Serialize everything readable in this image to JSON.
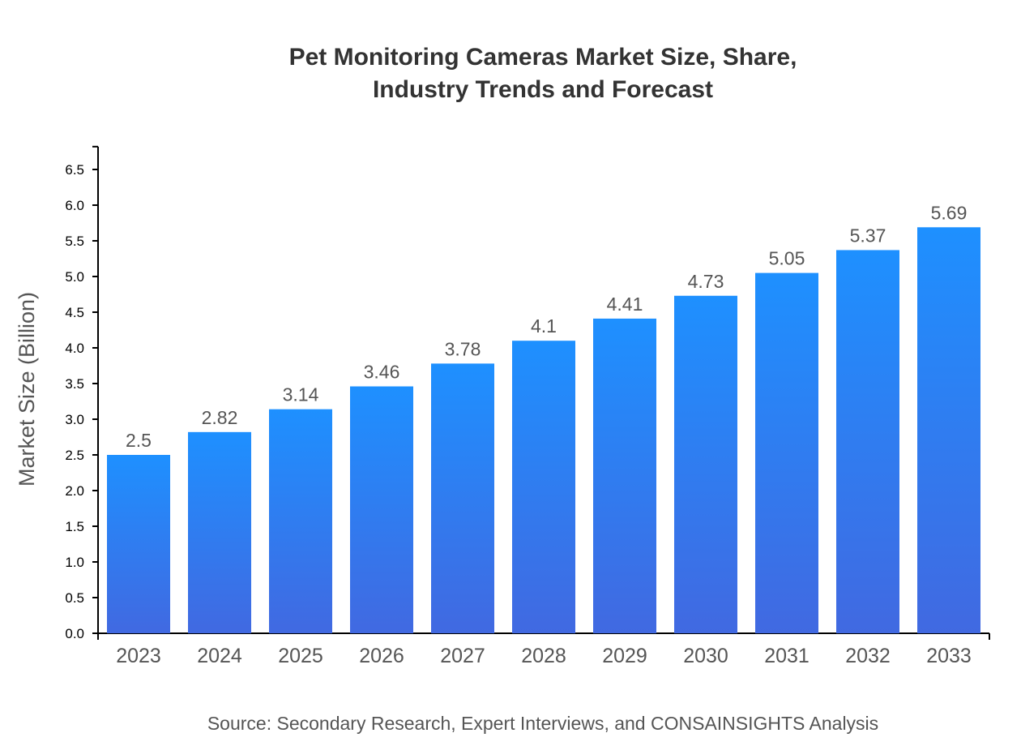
{
  "chart_data": {
    "type": "bar",
    "title": [
      "Pet Monitoring Cameras Market Size, Share,",
      "Industry Trends and Forecast"
    ],
    "xlabel": "",
    "ylabel": "Market Size (Billion)",
    "categories": [
      "2023",
      "2024",
      "2025",
      "2026",
      "2027",
      "2028",
      "2029",
      "2030",
      "2031",
      "2032",
      "2033"
    ],
    "values": [
      2.5,
      2.82,
      3.14,
      3.46,
      3.78,
      4.1,
      4.41,
      4.73,
      5.05,
      5.37,
      5.69
    ],
    "value_labels": [
      "2.5",
      "2.82",
      "3.14",
      "3.46",
      "3.78",
      "4.1",
      "4.41",
      "4.73",
      "5.05",
      "5.37",
      "5.69"
    ],
    "ylim": [
      0,
      6.82
    ],
    "yticks": [
      "0.0",
      "0.5",
      "1.0",
      "1.5",
      "2.0",
      "2.5",
      "3.0",
      "3.5",
      "4.0",
      "4.5",
      "5.0",
      "5.5",
      "6.0",
      "6.5"
    ],
    "grid": false,
    "legend": "none",
    "colors": {
      "bar_top": "#1e90ff",
      "bar_bottom": "#4169e1"
    },
    "source": "Source: Secondary Research, Expert Interviews, and CONSAINSIGHTS Analysis"
  }
}
